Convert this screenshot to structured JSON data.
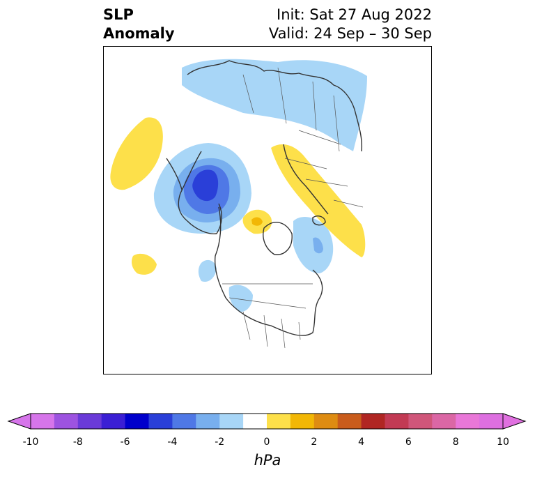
{
  "title": {
    "left_line1": "SLP",
    "left_line2": "Anomaly",
    "init": "Init: Sat 27 Aug 2022",
    "valid": "Valid: 24 Sep – 30 Sep"
  },
  "colorbar": {
    "label": "hPa",
    "bounds": [
      -10,
      -9,
      -8,
      -7,
      -6,
      -5,
      -4,
      -3,
      -2,
      -1,
      1,
      2,
      3,
      4,
      5,
      6,
      7,
      8,
      9,
      10
    ],
    "ticks": [
      -10,
      -8,
      -6,
      -4,
      -2,
      0,
      2,
      4,
      6,
      8,
      10
    ],
    "tick_labels": [
      "-10",
      "-8",
      "-6",
      "-4",
      "-2",
      "0",
      "2",
      "4",
      "6",
      "8",
      "10"
    ],
    "colors": [
      "#d675ea",
      "#9d53e0",
      "#6a3ad8",
      "#3b1fd4",
      "#0000cc",
      "#2a3fd8",
      "#4f78e6",
      "#78afee",
      "#a8d6f7",
      "#ffffff",
      "#fde04a",
      "#f2b705",
      "#de8c12",
      "#c95c1c",
      "#b02623",
      "#c23a54",
      "#d0567a",
      "#db67a5",
      "#e977d8",
      "#dd6fe0"
    ],
    "extend_low_color": "#d675ea",
    "extend_high_color": "#e070e0"
  }
}
